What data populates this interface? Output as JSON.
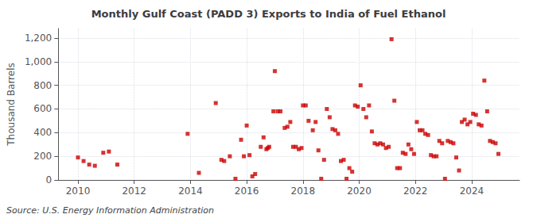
{
  "chart_data": {
    "type": "scatter",
    "title": "Monthly Gulf Coast (PADD 3) Exports to India of Fuel Ethanol",
    "ylabel": "Thousand Barrels",
    "annotations": [
      "Source: U.S. Energy Information Administration"
    ],
    "color": "#cc0000",
    "marker": "square",
    "grid": true,
    "xlim": [
      2009.3,
      2025.7
    ],
    "xticks": [
      2010,
      2012,
      2014,
      2016,
      2018,
      2020,
      2022,
      2024
    ],
    "ylim": [
      0,
      1280
    ],
    "yticks": [
      0,
      200,
      400,
      600,
      800,
      {
        "value": 1000,
        "label": "1,000"
      },
      {
        "value": 1200,
        "label": "1,200"
      }
    ],
    "x": [
      2010.0,
      2010.2,
      2010.4,
      2010.6,
      2010.9,
      2011.1,
      2011.4,
      2013.9,
      2014.3,
      2014.9,
      2015.1,
      2015.2,
      2015.4,
      2015.6,
      2015.8,
      2015.9,
      2016.0,
      2016.1,
      2016.2,
      2016.3,
      2016.5,
      2016.6,
      2016.7,
      2016.75,
      2016.8,
      2016.95,
      2017.0,
      2017.1,
      2017.2,
      2017.35,
      2017.45,
      2017.55,
      2017.65,
      2017.75,
      2017.85,
      2017.95,
      2018.0,
      2018.1,
      2018.2,
      2018.35,
      2018.45,
      2018.55,
      2018.65,
      2018.75,
      2018.85,
      2018.95,
      2019.05,
      2019.15,
      2019.25,
      2019.35,
      2019.45,
      2019.55,
      2019.65,
      2019.75,
      2019.85,
      2019.95,
      2020.05,
      2020.15,
      2020.25,
      2020.35,
      2020.45,
      2020.55,
      2020.65,
      2020.75,
      2020.85,
      2020.95,
      2021.05,
      2021.15,
      2021.25,
      2021.35,
      2021.45,
      2021.55,
      2021.65,
      2021.75,
      2021.85,
      2021.95,
      2022.05,
      2022.15,
      2022.25,
      2022.35,
      2022.45,
      2022.55,
      2022.65,
      2022.75,
      2022.85,
      2022.95,
      2023.05,
      2023.15,
      2023.25,
      2023.35,
      2023.45,
      2023.55,
      2023.65,
      2023.75,
      2023.85,
      2023.95,
      2024.05,
      2024.15,
      2024.25,
      2024.35,
      2024.45,
      2024.55,
      2024.65,
      2024.75,
      2024.85,
      2024.95
    ],
    "values": [
      190,
      160,
      130,
      120,
      230,
      240,
      130,
      390,
      60,
      650,
      170,
      160,
      200,
      10,
      340,
      200,
      460,
      210,
      30,
      50,
      280,
      360,
      260,
      270,
      280,
      580,
      920,
      580,
      580,
      440,
      450,
      490,
      280,
      280,
      260,
      270,
      630,
      630,
      500,
      420,
      490,
      250,
      10,
      170,
      600,
      530,
      430,
      420,
      390,
      160,
      170,
      10,
      100,
      70,
      630,
      620,
      800,
      600,
      530,
      630,
      410,
      310,
      300,
      310,
      300,
      270,
      280,
      1190,
      670,
      100,
      100,
      230,
      220,
      300,
      260,
      220,
      490,
      420,
      420,
      390,
      380,
      210,
      200,
      200,
      330,
      310,
      10,
      330,
      320,
      310,
      190,
      80,
      490,
      510,
      470,
      490,
      560,
      550,
      470,
      460,
      840,
      580,
      330,
      320,
      310,
      220
    ]
  }
}
